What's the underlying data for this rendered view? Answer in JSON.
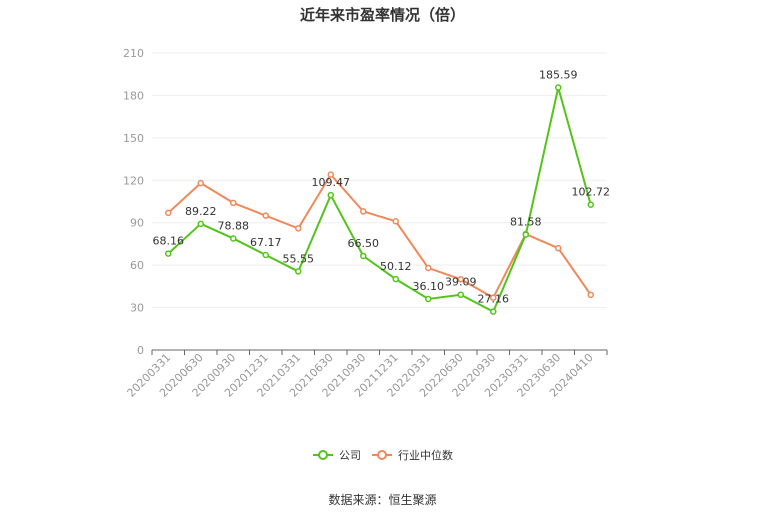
{
  "chart_data": {
    "type": "line",
    "title": "近年来市盈率情况（倍）",
    "categories": [
      "20200331",
      "20200630",
      "20200930",
      "20201231",
      "20210331",
      "20210630",
      "20210930",
      "20211231",
      "20220331",
      "20220630",
      "20220930",
      "20230331",
      "20230630",
      "20240410"
    ],
    "series": [
      {
        "name": "公司",
        "color": "#52c41a",
        "values": [
          68.16,
          89.22,
          78.88,
          67.17,
          55.55,
          109.47,
          66.5,
          50.12,
          36.1,
          39.09,
          27.16,
          81.58,
          185.59,
          102.72
        ],
        "labels": [
          "68.16",
          "89.22",
          "78.88",
          "67.17",
          "55.55",
          "109.47",
          "66.50",
          "50.12",
          "36.10",
          "39.09",
          "27.16",
          "81.58",
          "185.59",
          "102.72"
        ]
      },
      {
        "name": "行业中位数",
        "color": "#f0885a",
        "values": [
          97,
          118,
          104,
          95,
          86,
          124,
          98,
          91,
          58,
          50,
          37,
          82,
          72,
          39
        ]
      }
    ],
    "yticks": [
      "0",
      "30",
      "60",
      "90",
      "120",
      "150",
      "180",
      "210"
    ],
    "ylim": [
      0,
      210
    ],
    "grid": true,
    "legend_position": "bottom-center"
  },
  "source_note": "数据来源：恒生聚源"
}
